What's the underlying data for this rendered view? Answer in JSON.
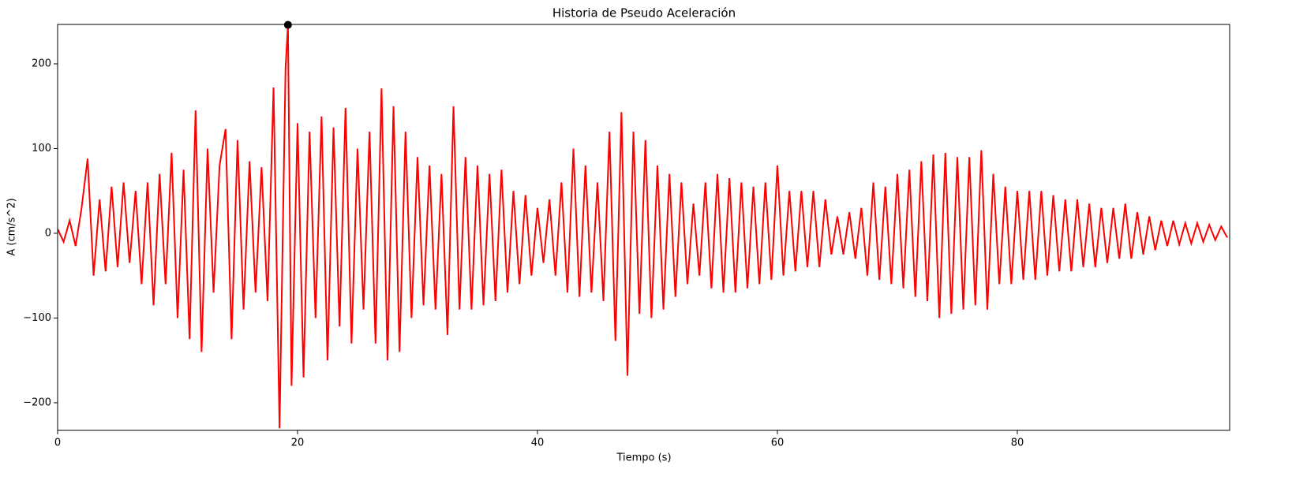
{
  "chart_data": {
    "type": "line",
    "title": "Historia de Pseudo Aceleración",
    "xlabel": "Tiempo (s)",
    "ylabel": "A (cm/s^2)",
    "color": "#ff0000",
    "x": [
      0,
      0.5,
      1,
      1.5,
      2,
      2.5,
      3,
      3.5,
      4,
      4.5,
      5,
      5.5,
      6,
      6.5,
      7,
      7.5,
      8,
      8.5,
      9,
      9.5,
      10,
      10.5,
      11,
      11.5,
      12,
      12.5,
      13,
      13.5,
      14,
      14.5,
      15,
      15.5,
      16,
      16.5,
      17,
      17.5,
      18,
      18.5,
      19,
      19.2,
      19.5,
      20,
      20.5,
      21,
      21.5,
      22,
      22.5,
      23,
      23.5,
      24,
      24.5,
      25,
      25.5,
      26,
      26.5,
      27,
      27.5,
      28,
      28.5,
      29,
      29.5,
      30,
      30.5,
      31,
      31.5,
      32,
      32.5,
      33,
      33.5,
      34,
      34.5,
      35,
      35.5,
      36,
      36.5,
      37,
      37.5,
      38,
      38.5,
      39,
      39.5,
      40,
      40.5,
      41,
      41.5,
      42,
      42.5,
      43,
      43.5,
      44,
      44.5,
      45,
      45.5,
      46,
      46.5,
      47,
      47.5,
      48,
      48.5,
      49,
      49.5,
      50,
      50.5,
      51,
      51.5,
      52,
      52.5,
      53,
      53.5,
      54,
      54.5,
      55,
      55.5,
      56,
      56.5,
      57,
      57.5,
      58,
      58.5,
      59,
      59.5,
      60,
      60.5,
      61,
      61.5,
      62,
      62.5,
      63,
      63.5,
      64,
      64.5,
      65,
      65.5,
      66,
      66.5,
      67,
      67.5,
      68,
      68.5,
      69,
      69.5,
      70,
      70.5,
      71,
      71.5,
      72,
      72.5,
      73,
      73.5,
      74,
      74.5,
      75,
      75.5,
      76,
      76.5,
      77,
      77.5,
      78,
      78.5,
      79,
      79.5,
      80,
      80.5,
      81,
      81.5,
      82,
      82.5,
      83,
      83.5,
      84,
      84.5,
      85,
      85.5,
      86,
      86.5,
      87,
      87.5,
      88,
      88.5,
      89,
      89.5,
      90,
      90.5,
      91,
      91.5,
      92,
      92.5,
      93,
      93.5,
      94,
      94.5,
      95,
      95.5,
      96,
      96.5,
      97,
      97.5
    ],
    "values": [
      5,
      -10,
      15,
      -15,
      30,
      88,
      -50,
      40,
      -45,
      55,
      -40,
      60,
      -35,
      50,
      -60,
      60,
      -85,
      70,
      -60,
      95,
      -100,
      75,
      -125,
      145,
      -140,
      100,
      -70,
      80,
      123,
      -125,
      110,
      -90,
      85,
      -70,
      78,
      -80,
      172,
      -230,
      195,
      246,
      -180,
      130,
      -170,
      120,
      -100,
      138,
      -150,
      125,
      -110,
      148,
      -130,
      100,
      -90,
      120,
      -130,
      171,
      -150,
      150,
      -140,
      120,
      -100,
      90,
      -85,
      80,
      -90,
      70,
      -120,
      150,
      -90,
      90,
      -90,
      80,
      -85,
      70,
      -80,
      75,
      -70,
      50,
      -60,
      45,
      -50,
      30,
      -35,
      40,
      -50,
      60,
      -70,
      100,
      -75,
      80,
      -70,
      60,
      -80,
      120,
      -127,
      143,
      -168,
      120,
      -95,
      110,
      -100,
      80,
      -90,
      70,
      -75,
      60,
      -60,
      35,
      -50,
      60,
      -65,
      70,
      -70,
      65,
      -70,
      60,
      -65,
      55,
      -60,
      60,
      -55,
      80,
      -50,
      50,
      -45,
      50,
      -40,
      50,
      -40,
      40,
      -25,
      20,
      -25,
      25,
      -30,
      30,
      -50,
      60,
      -55,
      55,
      -60,
      70,
      -65,
      75,
      -75,
      85,
      -80,
      93,
      -100,
      95,
      -95,
      90,
      -90,
      90,
      -85,
      98,
      -90,
      70,
      -60,
      55,
      -60,
      50,
      -55,
      50,
      -55,
      50,
      -50,
      45,
      -45,
      40,
      -45,
      40,
      -40,
      35,
      -40,
      30,
      -35,
      30,
      -30,
      35,
      -30,
      25,
      -25,
      20,
      -20,
      15,
      -15,
      15,
      -13,
      12,
      -12,
      12,
      -10,
      10,
      -8,
      8,
      -5
    ],
    "peak": {
      "x": 19.2,
      "y": 246,
      "color": "#000000"
    },
    "xlim": [
      0,
      97.7
    ],
    "ylim": [
      -232.6,
      246.5
    ],
    "xticks": [
      0,
      20,
      40,
      60,
      80
    ],
    "yticks": [
      {
        "value": -200,
        "label": "−200"
      },
      {
        "value": -100,
        "label": "−100"
      },
      0,
      100,
      200
    ]
  }
}
